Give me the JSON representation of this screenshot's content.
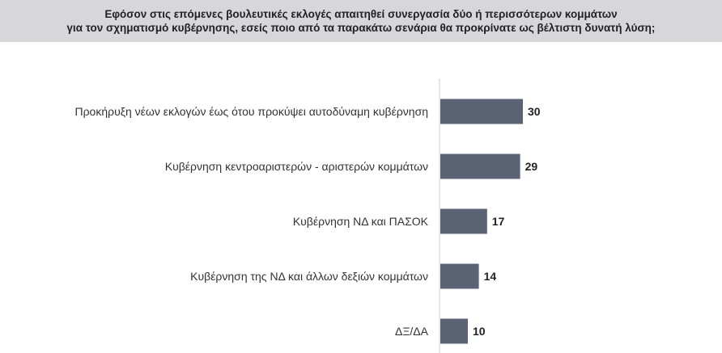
{
  "chart_data": {
    "type": "bar",
    "orientation": "horizontal",
    "title": "Εφόσον στις επόμενες βουλευτικές εκλογές απαιτηθεί συνεργασία δύο ή περισσότερων κομμάτων",
    "subtitle": "για τον σχηματισμό κυβέρνησης, εσείς ποιο από τα παρακάτω σενάρια θα προκρίνατε ως βέλτιστη δυνατή λύση;",
    "categories": [
      "Προκήρυξη νέων εκλογών έως ότου προκύψει αυτοδύναμη κυβέρνηση",
      "Κυβέρνηση κεντροαριστερών - αριστερών κομμάτων",
      "Κυβέρνηση ΝΔ και ΠΑΣΟΚ",
      "Κυβέρνηση της ΝΔ και άλλων δεξιών κομμάτων",
      "ΔΞ/ΔΑ"
    ],
    "values": [
      30,
      29,
      17,
      14,
      10
    ],
    "data_labels": [
      "30",
      "29",
      "17",
      "14",
      "10"
    ],
    "xlim": [
      0,
      100
    ],
    "grid": false,
    "legend": "none",
    "bar_color": "#5b6475",
    "axis_color": "#cccccc"
  }
}
